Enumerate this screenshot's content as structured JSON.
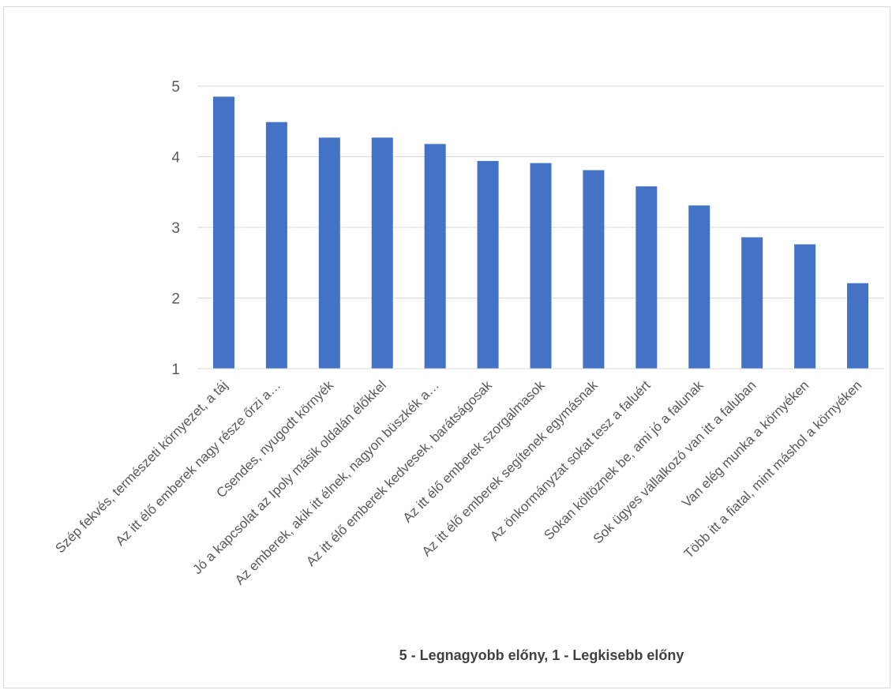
{
  "chart_data": {
    "type": "bar",
    "title": "",
    "xlabel": "5 - Legnagyobb előny, 1 - Legkisebb előny",
    "ylabel": "",
    "ylim": [
      1,
      5
    ],
    "yticks": [
      1,
      2,
      3,
      4,
      5
    ],
    "grid": true,
    "legend": "none",
    "bar_color": "#4472c4",
    "categories": [
      "Szép fekvés, természeti környezet, a táj",
      "Az itt élő emberek nagy része őrzi a…",
      "Csendes, nyugodt környék",
      "Jó a kapcsolat az Ipoly másik oldalán élőkkel",
      "Az emberek, akik itt élnek, nagyon büszkék a…",
      "Az itt élő emberek kedvesek, barátságosak",
      "Az itt élő emberek szorgalmasok",
      "Az itt élő emberek segítenek egymásnak",
      "Az önkormányzat sokat tesz a faluért",
      "Sokan költöznek be, ami jó a falunak",
      "Sok ügyes vállalkozó van itt a faluban",
      "Van elég munka a környéken",
      "Több itt a fiatal, mint máshol a környéken"
    ],
    "values": [
      4.85,
      4.49,
      4.27,
      4.27,
      4.18,
      3.94,
      3.91,
      3.81,
      3.58,
      3.31,
      2.86,
      2.76,
      2.21
    ]
  }
}
